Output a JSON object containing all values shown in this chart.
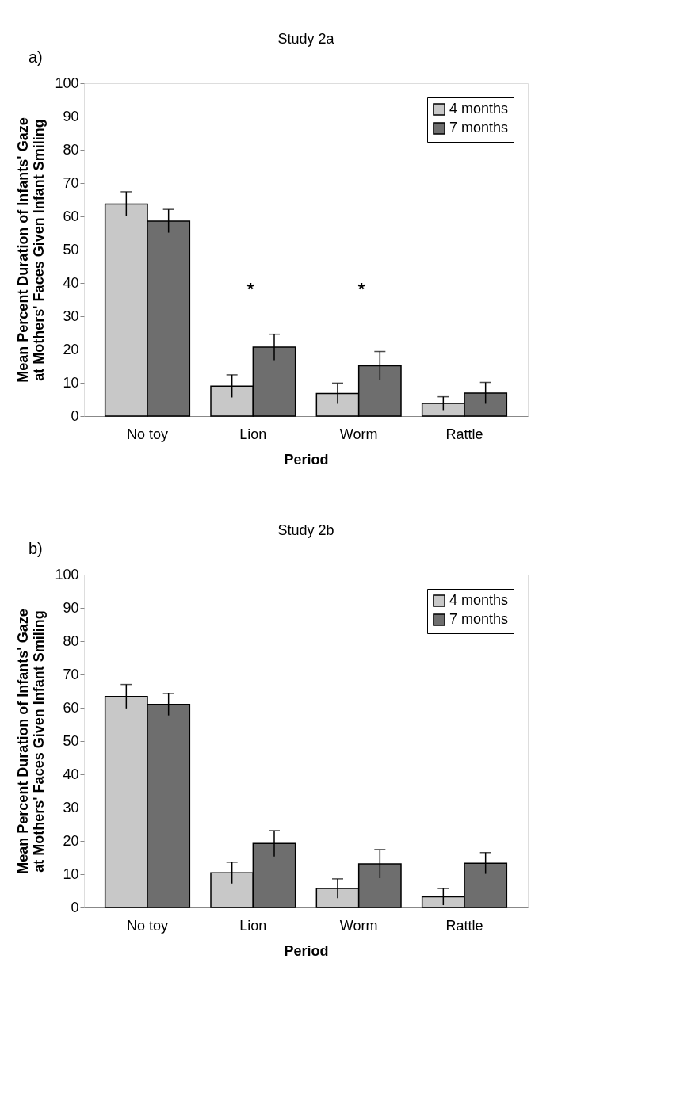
{
  "chart_data": [
    {
      "type": "bar",
      "title": "Study 2a",
      "xlabel": "Period",
      "ylabel": "Mean Percent Duration of Infants' Gaze\nat Mothers' Faces Given Infant Smiling",
      "categories": [
        "No toy",
        "Lion",
        "Worm",
        "Rattle"
      ],
      "series": [
        {
          "name": "4 months",
          "color": "#c8c8c8",
          "values": [
            63.7,
            9.0,
            6.8,
            3.8
          ],
          "errors": [
            3.7,
            3.4,
            3.1,
            2.0
          ]
        },
        {
          "name": "7 months",
          "color": "#6e6e6e",
          "values": [
            58.6,
            20.7,
            15.1,
            6.9
          ],
          "errors": [
            3.5,
            3.9,
            4.3,
            3.2
          ]
        }
      ],
      "ylim": [
        0,
        100
      ],
      "yticks": [
        0,
        10,
        20,
        30,
        40,
        50,
        60,
        70,
        80,
        90,
        100
      ],
      "grid": false,
      "legend": "top right",
      "annotations": [
        "a)",
        "*",
        "*"
      ]
    },
    {
      "type": "bar",
      "title": "Study 2b",
      "xlabel": "Period",
      "ylabel": "Mean Percent Duration of Infants' Gaze\nat Mothers' Faces Given Infant Smiling",
      "categories": [
        "No toy",
        "Lion",
        "Worm",
        "Rattle"
      ],
      "series": [
        {
          "name": "4 months",
          "color": "#c8c8c8",
          "values": [
            63.4,
            10.4,
            5.7,
            3.2
          ],
          "errors": [
            3.6,
            3.2,
            2.9,
            2.5
          ]
        },
        {
          "name": "7 months",
          "color": "#6e6e6e",
          "values": [
            61.0,
            19.2,
            13.1,
            13.3
          ],
          "errors": [
            3.3,
            3.9,
            4.3,
            3.2
          ]
        }
      ],
      "ylim": [
        0,
        100
      ],
      "yticks": [
        0,
        10,
        20,
        30,
        40,
        50,
        60,
        70,
        80,
        90,
        100
      ],
      "grid": false,
      "legend": "top right",
      "annotations": [
        "b)"
      ]
    }
  ]
}
